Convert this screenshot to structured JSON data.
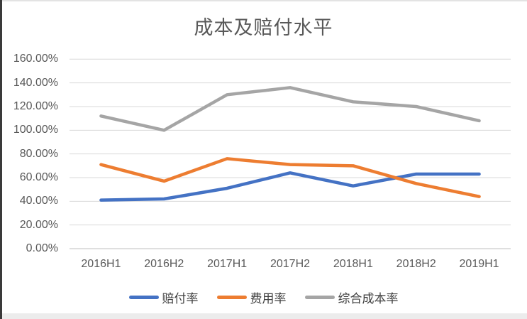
{
  "chart_data": {
    "type": "line",
    "title": "成本及赔付水平",
    "categories": [
      "2016H1",
      "2016H2",
      "2017H1",
      "2017H2",
      "2018H1",
      "2018H2",
      "2019H1"
    ],
    "series": [
      {
        "name": "赔付率",
        "color": "#4472C4",
        "values": [
          41,
          42,
          51,
          64,
          53,
          63,
          63
        ]
      },
      {
        "name": "费用率",
        "color": "#ED7D31",
        "values": [
          71,
          57,
          76,
          71,
          70,
          55,
          44
        ]
      },
      {
        "name": "综合成本率",
        "color": "#A5A5A5",
        "values": [
          112,
          100,
          130,
          136,
          124,
          120,
          108
        ]
      }
    ],
    "xlabel": "",
    "ylabel": "",
    "ylim": [
      0,
      160
    ],
    "y_tick_step": 20,
    "y_tick_labels": [
      "0.00%",
      "20.00%",
      "40.00%",
      "60.00%",
      "80.00%",
      "100.00%",
      "120.00%",
      "140.00%",
      "160.00%"
    ],
    "values_unit": "percent",
    "grid": true,
    "legend_position": "bottom",
    "colors": {
      "gridline": "#D9D9D9",
      "axis_line": "#BFBFBF",
      "axis_text": "#595959",
      "title_text": "#595959",
      "legend_text": "#404040"
    }
  }
}
